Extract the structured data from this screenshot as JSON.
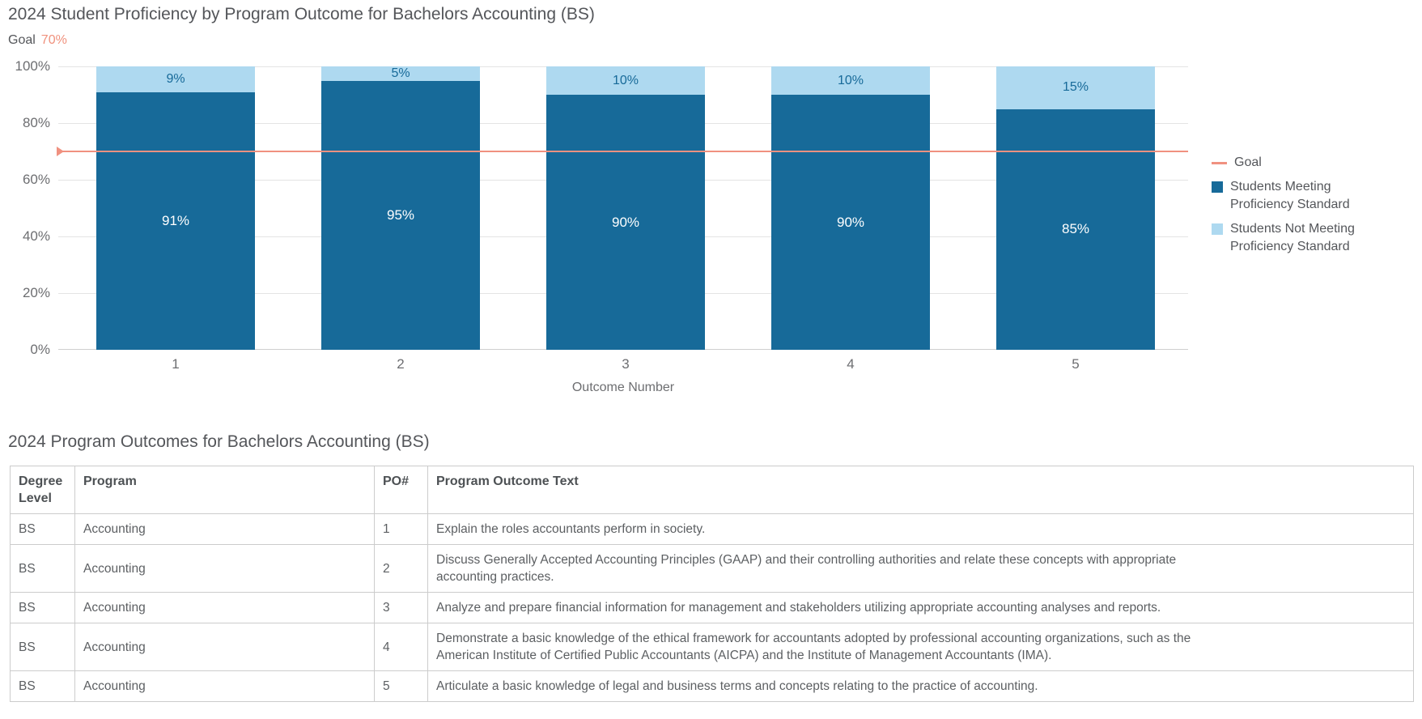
{
  "chart": {
    "title": "2024 Student Proficiency by Program Outcome for Bachelors Accounting (BS)",
    "goal_label": "Goal",
    "goal_value_text": "70%",
    "xlabel": "Outcome Number",
    "y_ticks": [
      "100%",
      "80%",
      "60%",
      "40%",
      "20%",
      "0%"
    ],
    "legend": {
      "goal": "Goal",
      "meeting": "Students Meeting Proficiency Standard",
      "not_meeting": "Students Not Meeting Proficiency Standard"
    },
    "colors": {
      "meeting": "#176a99",
      "not_meeting": "#aed9f0",
      "goal_line": "#f09180",
      "axis_text": "#6d6e71",
      "title_text": "#54565a"
    }
  },
  "chart_data": {
    "type": "bar",
    "stacked": true,
    "title": "2024 Student Proficiency by Program Outcome for Bachelors Accounting (BS)",
    "xlabel": "Outcome Number",
    "ylabel": "",
    "ylim": [
      0,
      100
    ],
    "y_tick_step": 20,
    "grid": true,
    "legend_position": "right",
    "categories": [
      "1",
      "2",
      "3",
      "4",
      "5"
    ],
    "series": [
      {
        "name": "Students Meeting Proficiency Standard",
        "color": "#176a99",
        "values": [
          91,
          95,
          90,
          90,
          85
        ],
        "labels": [
          "91%",
          "95%",
          "90%",
          "90%",
          "85%"
        ]
      },
      {
        "name": "Students Not Meeting Proficiency Standard",
        "color": "#aed9f0",
        "values": [
          9,
          5,
          10,
          10,
          15
        ],
        "labels": [
          "9%",
          "5%",
          "10%",
          "10%",
          "15%"
        ]
      }
    ],
    "goal": {
      "label": "Goal",
      "value": 70,
      "display": "70%",
      "color": "#f09180"
    }
  },
  "table_section": {
    "title": "2024 Program Outcomes for Bachelors Accounting (BS)",
    "columns": {
      "degree_level": "Degree Level",
      "program": "Program",
      "po": "PO#",
      "outcome_text": "Program Outcome Text"
    },
    "rows": [
      {
        "degree_level": "BS",
        "program": "Accounting",
        "po": "1",
        "outcome_text": "Explain the roles accountants perform in society."
      },
      {
        "degree_level": "BS",
        "program": "Accounting",
        "po": "2",
        "outcome_text": "Discuss Generally Accepted Accounting Principles (GAAP) and their controlling authorities and relate these concepts with appropriate accounting practices."
      },
      {
        "degree_level": "BS",
        "program": "Accounting",
        "po": "3",
        "outcome_text": "Analyze and prepare financial information for management and stakeholders utilizing appropriate accounting analyses and reports."
      },
      {
        "degree_level": "BS",
        "program": "Accounting",
        "po": "4",
        "outcome_text": "Demonstrate a basic knowledge of the ethical framework for accountants adopted by professional accounting organizations, such as the American Institute of Certified Public Accountants (AICPA) and the Institute of Management Accountants (IMA)."
      },
      {
        "degree_level": "BS",
        "program": "Accounting",
        "po": "5",
        "outcome_text": "Articulate a basic knowledge of legal and business terms and concepts relating to the practice of accounting."
      }
    ]
  }
}
